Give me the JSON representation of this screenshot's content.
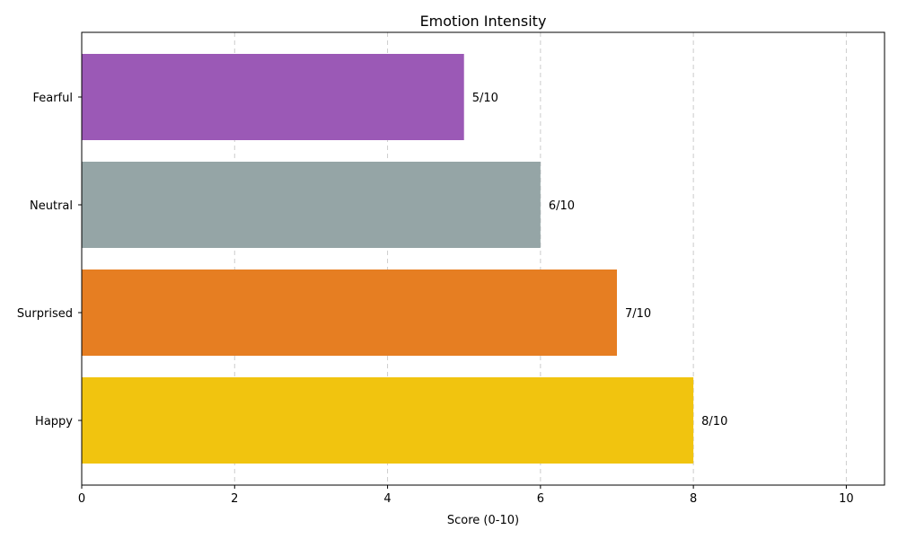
{
  "chart_data": {
    "type": "bar",
    "orientation": "horizontal",
    "title": "Emotion Intensity",
    "xlabel": "Score (0-10)",
    "ylabel": "",
    "xlim": [
      0,
      10.5
    ],
    "x_ticks": [
      0,
      2,
      4,
      6,
      8,
      10
    ],
    "grid": "x-axis dashed",
    "categories": [
      "Happy",
      "Surprised",
      "Neutral",
      "Fearful"
    ],
    "values": [
      8,
      7,
      6,
      5
    ],
    "value_labels": [
      "8/10",
      "7/10",
      "6/10",
      "5/10"
    ],
    "colors": [
      "#f1c40f",
      "#e67e22",
      "#95a5a6",
      "#9b59b6"
    ]
  }
}
